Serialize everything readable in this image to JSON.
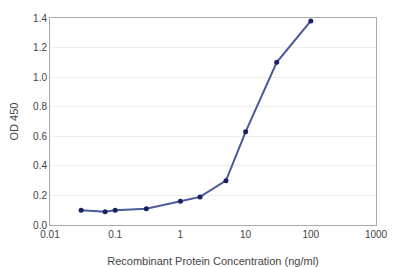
{
  "chart_data": {
    "type": "line",
    "xlabel": "Recombinant Protein Concentration (ng/ml)",
    "ylabel": "OD 450",
    "x": [
      0.03,
      0.07,
      0.1,
      0.3,
      1.0,
      2.0,
      5.0,
      10.0,
      30.0,
      100.0
    ],
    "values": [
      0.1,
      0.09,
      0.1,
      0.11,
      0.16,
      0.19,
      0.3,
      0.63,
      1.1,
      1.38
    ],
    "color": "#4a5a9a",
    "colors": [
      "#1a2060",
      "#1a2060",
      "#1a2060",
      "#1a2060",
      "#1a2060",
      "#1a2060",
      "#1a2060",
      "#1a2060",
      "#1a2060",
      "#1a2060"
    ],
    "marker": "circle",
    "log": "x",
    "xlim": [
      0.01,
      1000
    ],
    "ylim": [
      0,
      1.4
    ],
    "xticks": [
      0.01,
      0.1,
      1,
      10,
      100,
      1000
    ],
    "yticks": [
      {
        "value": 0,
        "label": "0.0"
      },
      0.2,
      0.4,
      0.6,
      0.8,
      {
        "value": 1.0,
        "label": "1.0"
      },
      1.2,
      1.4
    ],
    "grid": "y"
  }
}
